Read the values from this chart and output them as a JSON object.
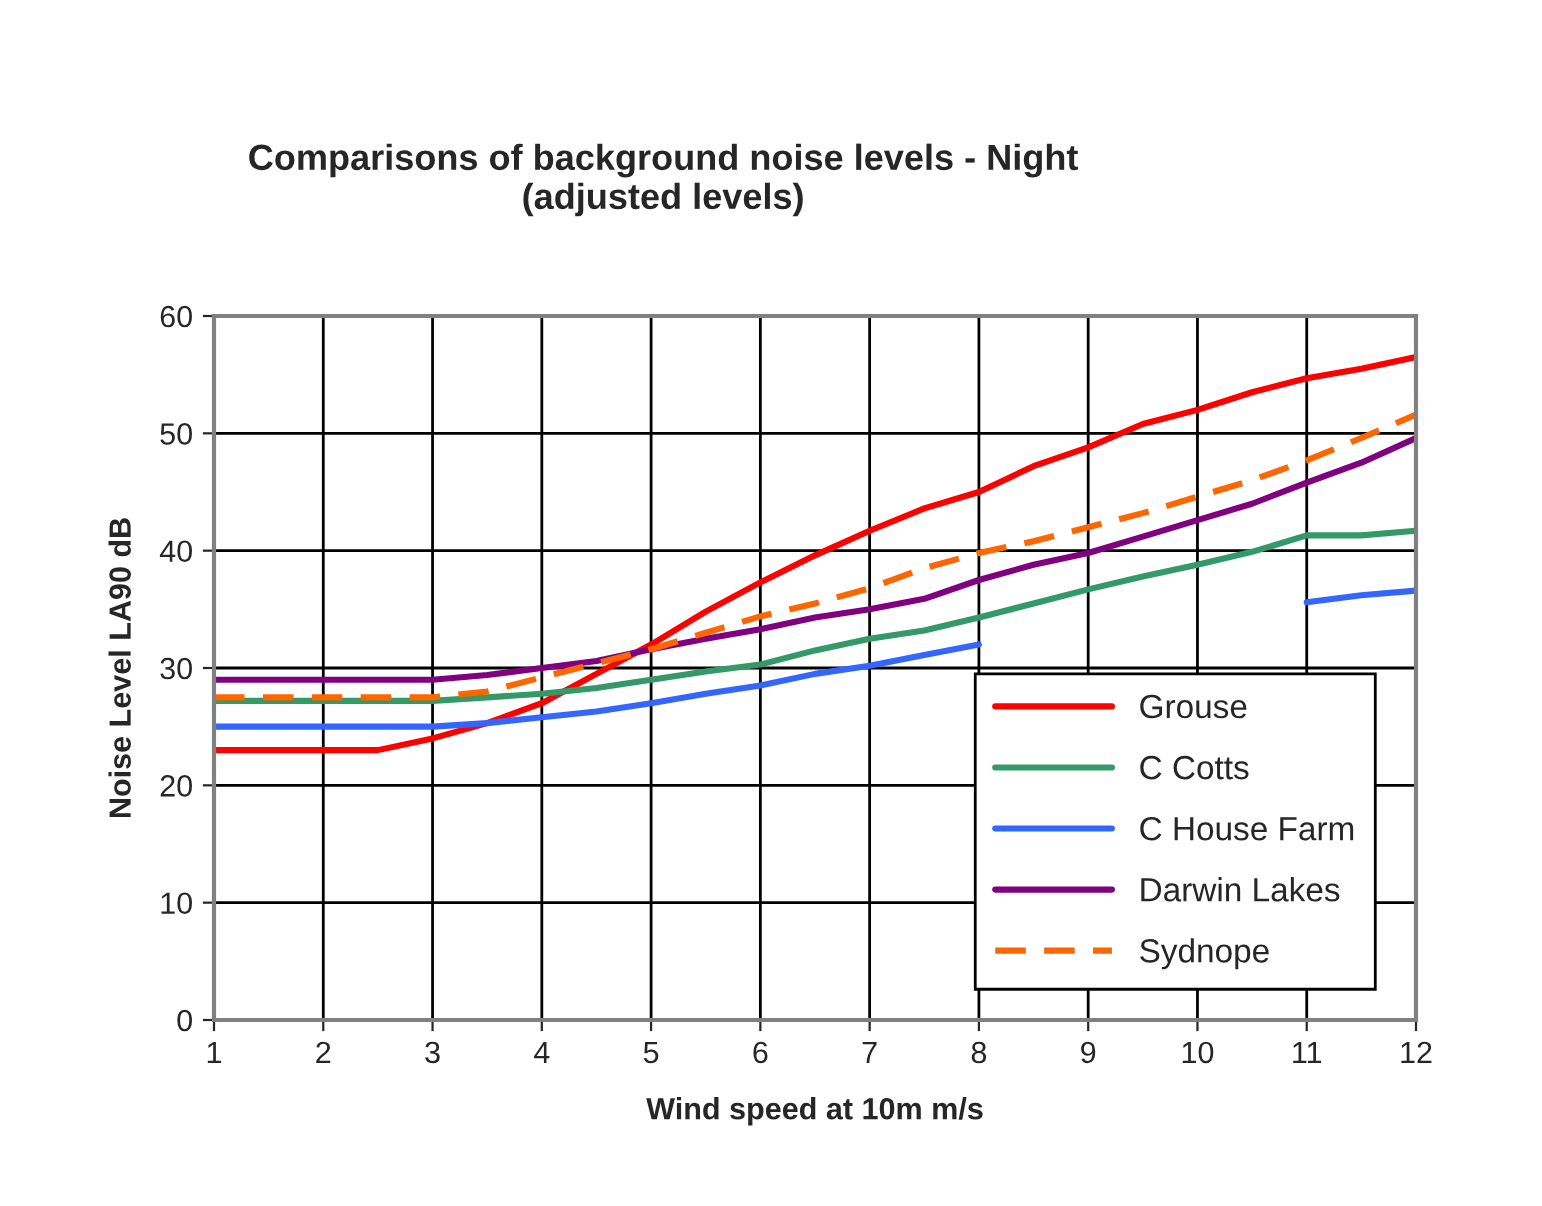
{
  "chart_data": {
    "type": "line",
    "title": "Comparisons of background noise levels - Night\n(adjusted levels)",
    "xlabel": "Wind speed at 10m m/s",
    "ylabel": "Noise Level LA90 dB",
    "x": [
      1,
      1.5,
      2,
      2.5,
      3,
      3.5,
      4,
      4.5,
      5,
      5.5,
      6,
      6.5,
      7,
      7.5,
      8,
      8.5,
      9,
      9.5,
      10,
      10.5,
      11,
      11.5,
      12
    ],
    "series": [
      {
        "name": "Grouse",
        "color": "#ff0000",
        "values": [
          23,
          23,
          23,
          23,
          24,
          25.3,
          27,
          29.5,
          32,
          34.8,
          37.3,
          39.6,
          41.7,
          43.6,
          45,
          47.2,
          48.8,
          50.8,
          52,
          53.5,
          54.7,
          55.5,
          56.5
        ]
      },
      {
        "name": "C Cotts",
        "color": "#339966",
        "values": [
          27.2,
          27.2,
          27.2,
          27.2,
          27.2,
          27.5,
          27.8,
          28.3,
          29,
          29.7,
          30.3,
          31.5,
          32.5,
          33.2,
          34.3,
          35.5,
          36.7,
          37.8,
          38.8,
          39.9,
          41.3,
          41.3,
          41.7
        ]
      },
      {
        "name": "C House Farm",
        "color": "#3366ff",
        "values": [
          25,
          25,
          25,
          25,
          25,
          25.3,
          25.8,
          26.3,
          27,
          27.8,
          28.5,
          29.5,
          30.2,
          31.1,
          32,
          null,
          null,
          null,
          null,
          null,
          35.6,
          36.2,
          36.6
        ]
      },
      {
        "name": "Darwin Lakes",
        "color": "#800080",
        "values": [
          29,
          29,
          29,
          29,
          29,
          29.4,
          30,
          30.6,
          31.6,
          32.5,
          33.3,
          34.3,
          35,
          35.9,
          37.5,
          38.8,
          39.8,
          41.2,
          42.6,
          44,
          45.8,
          47.5,
          49.6
        ]
      },
      {
        "name": "Sydnope",
        "color": "#ff6600",
        "line_style": "dashed",
        "values": [
          27.5,
          27.5,
          27.5,
          27.5,
          27.5,
          28,
          29.2,
          30.4,
          31.6,
          33,
          34.4,
          35.5,
          36.8,
          38.5,
          39.8,
          40.8,
          42,
          43.2,
          44.6,
          46,
          47.7,
          49.6,
          51.6
        ]
      }
    ],
    "xlim": [
      1,
      12
    ],
    "xticks": [
      1,
      2,
      3,
      4,
      5,
      6,
      7,
      8,
      9,
      10,
      11,
      12
    ],
    "ylim": [
      0,
      60
    ],
    "yticks": [
      0,
      10,
      20,
      30,
      40,
      50,
      60
    ],
    "grid": true,
    "legend": "right",
    "line_style": "solid",
    "marker": "none"
  }
}
